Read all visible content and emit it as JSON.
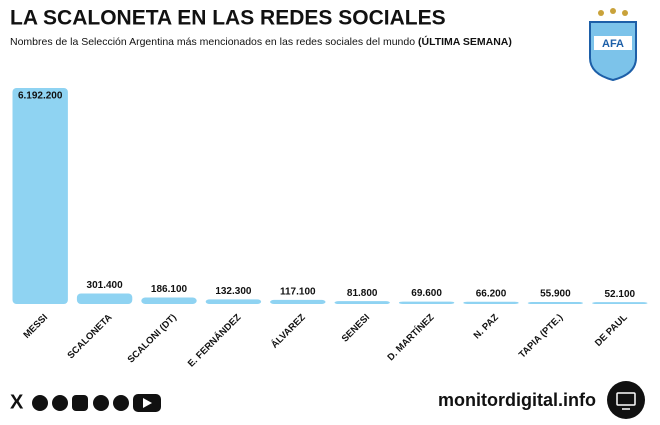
{
  "chart_data": {
    "type": "bar",
    "title": "LA SCALONETA EN LAS REDES SOCIALES",
    "subtitle": "Nombres de la Selección Argentina más mencionados en las redes sociales del mundo",
    "subtitle_emphasis": "(ÚLTIMA SEMANA)",
    "categories": [
      "MESSI",
      "SCALONETA",
      "SCALONI (DT)",
      "E. FERNÁNDEZ",
      "ÁLVAREZ",
      "SENESI",
      "D. MARTÍNEZ",
      "N. PAZ",
      "TAPIA (PTE.)",
      "DE PAUL"
    ],
    "values": [
      6192200,
      301400,
      186100,
      132300,
      117100,
      81800,
      69600,
      66200,
      55900,
      52100
    ],
    "value_labels": [
      "6.192.200",
      "301.400",
      "186.100",
      "132.300",
      "117.100",
      "81.800",
      "69.600",
      "66.200",
      "55.900",
      "52.100"
    ],
    "color": "#8fd3f2",
    "source": "monitordigital.info"
  }
}
